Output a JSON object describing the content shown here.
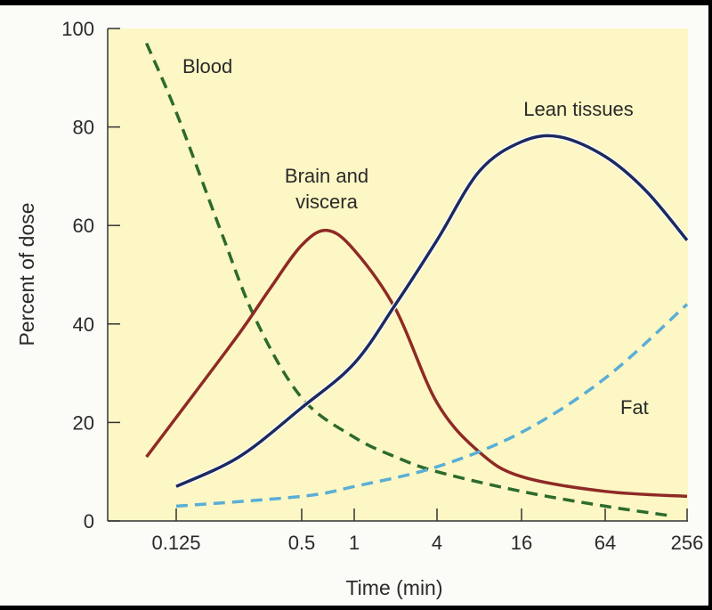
{
  "chart_data": {
    "type": "line",
    "title": "",
    "xlabel": "Time (min)",
    "ylabel": "Percent of dose",
    "x_scale": "log2",
    "x_ticks": [
      0.125,
      0.5,
      1,
      4,
      16,
      64,
      256
    ],
    "x_tick_labels": [
      "0.125",
      "0.5",
      "1",
      "4",
      "16",
      "64",
      "256"
    ],
    "y_ticks": [
      0,
      20,
      40,
      60,
      80,
      100
    ],
    "y_tick_labels": [
      "0",
      "20",
      "40",
      "60",
      "80",
      "100"
    ],
    "ylim": [
      0,
      100
    ],
    "grid": false,
    "background_color": "#fcf7c4",
    "series": [
      {
        "name": "Blood",
        "color": "#2d6a2d",
        "style": "dashed",
        "x": [
          0.09,
          0.125,
          0.2,
          0.3,
          0.5,
          1,
          2,
          4,
          16,
          64,
          200
        ],
        "y": [
          97,
          83,
          60,
          41,
          25,
          17,
          13,
          10,
          6,
          3,
          1
        ]
      },
      {
        "name": "Brain and viscera",
        "color": "#8e2a26",
        "style": "solid",
        "x": [
          0.09,
          0.125,
          0.25,
          0.35,
          0.5,
          0.7,
          1,
          2,
          4,
          8,
          16,
          64,
          256
        ],
        "y": [
          13,
          21,
          38,
          47,
          56,
          59,
          55,
          43,
          24,
          14,
          9,
          6,
          5
        ]
      },
      {
        "name": "Lean tissues",
        "color": "#1d2a5e",
        "style": "solid",
        "x": [
          0.125,
          0.25,
          0.5,
          1,
          2,
          4,
          8,
          16,
          30,
          64,
          128,
          256
        ],
        "y": [
          7,
          13,
          23,
          32,
          44,
          57,
          71,
          77,
          78,
          74,
          67,
          57
        ]
      },
      {
        "name": "Fat",
        "color": "#5aaed6",
        "style": "dashed",
        "x": [
          0.125,
          0.5,
          1,
          4,
          16,
          64,
          256
        ],
        "y": [
          3,
          5,
          7,
          11,
          18,
          29,
          44
        ]
      }
    ],
    "annotations": [
      "Blood",
      "Brain and",
      "viscera",
      "Lean tissues",
      "Fat"
    ]
  }
}
